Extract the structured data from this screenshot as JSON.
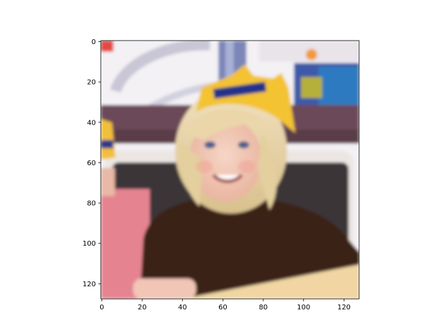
{
  "image": {
    "rows": 128,
    "cols": 128,
    "description_colors": {
      "shirt": "#3a2218",
      "hair": "#e6d2a6",
      "crown": "#f2c232",
      "skin": "#f2c4b0",
      "booth_seat": "#3a3436",
      "booth_frame": "#efe9e6",
      "wall_upper": "#f5f3f6",
      "wall_band": "#6a4a56",
      "table": "#f0d6a6",
      "left_child_shirt": "#e07a86"
    }
  },
  "axes": {
    "x_ticks": [
      0,
      20,
      40,
      60,
      80,
      100,
      120
    ],
    "y_ticks": [
      0,
      20,
      40,
      60,
      80,
      100,
      120
    ],
    "x_tick_labels": [
      "0",
      "20",
      "40",
      "60",
      "80",
      "100",
      "120"
    ],
    "y_tick_labels": [
      "0",
      "20",
      "40",
      "60",
      "80",
      "100",
      "120"
    ]
  }
}
